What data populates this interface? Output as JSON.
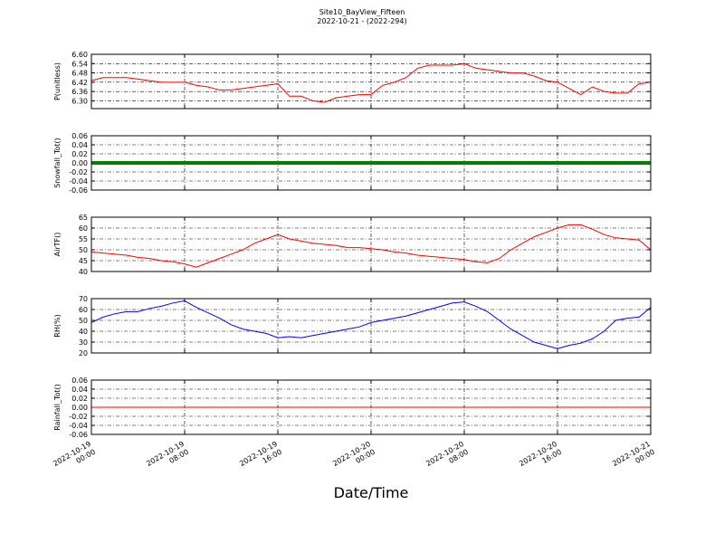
{
  "title": "Site10_BayView_Fifteen",
  "subtitle": "2022-10-21 - (2022-294)",
  "xlabel": "Date/Time",
  "x": [
    "2022-10-19 00:00",
    "2022-10-19 01:00",
    "2022-10-19 02:00",
    "2022-10-19 03:00",
    "2022-10-19 04:00",
    "2022-10-19 05:00",
    "2022-10-19 06:00",
    "2022-10-19 07:00",
    "2022-10-19 08:00",
    "2022-10-19 09:00",
    "2022-10-19 10:00",
    "2022-10-19 11:00",
    "2022-10-19 12:00",
    "2022-10-19 13:00",
    "2022-10-19 14:00",
    "2022-10-19 15:00",
    "2022-10-19 16:00",
    "2022-10-19 17:00",
    "2022-10-19 18:00",
    "2022-10-19 19:00",
    "2022-10-19 20:00",
    "2022-10-19 21:00",
    "2022-10-19 22:00",
    "2022-10-19 23:00",
    "2022-10-20 00:00",
    "2022-10-20 01:00",
    "2022-10-20 02:00",
    "2022-10-20 03:00",
    "2022-10-20 04:00",
    "2022-10-20 05:00",
    "2022-10-20 06:00",
    "2022-10-20 07:00",
    "2022-10-20 08:00",
    "2022-10-20 09:00",
    "2022-10-20 10:00",
    "2022-10-20 11:00",
    "2022-10-20 12:00",
    "2022-10-20 13:00",
    "2022-10-20 14:00",
    "2022-10-20 15:00",
    "2022-10-20 16:00",
    "2022-10-20 17:00",
    "2022-10-20 18:00",
    "2022-10-20 19:00",
    "2022-10-20 20:00",
    "2022-10-20 21:00",
    "2022-10-20 22:00",
    "2022-10-20 23:00",
    "2022-10-21 00:00"
  ],
  "xlim": [
    "2022-10-19 00:00",
    "2022-10-21 00:00"
  ],
  "xticks": [
    "2022-10-19 00:00",
    "2022-10-19 08:00",
    "2022-10-19 16:00",
    "2022-10-20 00:00",
    "2022-10-20 08:00",
    "2022-10-20 16:00",
    "2022-10-21 00:00"
  ],
  "chart_data": [
    {
      "type": "line",
      "ylabel": "P(unitless)",
      "color": "#ff0000",
      "grid": true,
      "ylim": [
        6.25,
        6.6
      ],
      "yticks": [
        {
          "value": 6.3,
          "label": "6.30"
        },
        6.36,
        6.42,
        6.48,
        6.54,
        {
          "value": 6.6,
          "label": "6.60"
        }
      ],
      "values": [
        6.43,
        6.45,
        6.45,
        6.45,
        6.44,
        6.43,
        6.42,
        6.42,
        6.42,
        6.4,
        6.39,
        6.37,
        6.37,
        6.38,
        6.39,
        6.4,
        6.41,
        6.33,
        6.33,
        6.3,
        6.29,
        6.32,
        6.33,
        6.34,
        6.34,
        6.4,
        6.42,
        6.45,
        6.51,
        6.53,
        6.53,
        6.53,
        6.54,
        6.51,
        6.5,
        6.49,
        6.48,
        6.48,
        6.46,
        6.43,
        6.42,
        6.38,
        6.34,
        6.39,
        6.36,
        6.35,
        6.35,
        6.41,
        6.42
      ]
    },
    {
      "type": "line",
      "ylabel": "Snowfall_Tot()",
      "color": "#008000",
      "grid": true,
      "ylim": [
        -0.06,
        0.06
      ],
      "yticks": [
        {
          "value": -0.06,
          "label": "-0.06"
        },
        {
          "value": -0.04,
          "label": "-0.04"
        },
        {
          "value": -0.02,
          "label": "-0.02"
        },
        {
          "value": 0,
          "label": "0.00"
        },
        0.02,
        0.04,
        0.06
      ],
      "values": [
        0,
        0,
        0,
        0,
        0,
        0,
        0,
        0,
        0,
        0,
        0,
        0,
        0,
        0,
        0,
        0,
        0,
        0,
        0,
        0,
        0,
        0,
        0,
        0,
        0,
        0,
        0,
        0,
        0,
        0,
        0,
        0,
        0,
        0,
        0,
        0,
        0,
        0,
        0,
        0,
        0,
        0,
        0,
        0,
        0,
        0,
        0,
        0,
        0
      ]
    },
    {
      "type": "line",
      "ylabel": "AirTF()",
      "color": "#ff0000",
      "grid": true,
      "ylim": [
        40,
        65
      ],
      "yticks": [
        40,
        45,
        50,
        55,
        60,
        65
      ],
      "values": [
        49,
        48.5,
        48,
        47.5,
        46.5,
        46,
        45,
        44.5,
        43.5,
        42,
        44,
        46,
        48,
        50,
        53,
        55,
        57,
        55,
        54,
        53,
        52.5,
        52,
        51,
        51,
        50.5,
        50,
        49,
        48.5,
        47.5,
        47,
        46.5,
        46,
        45.5,
        44.5,
        44,
        46,
        50,
        53,
        56,
        58,
        60,
        61.5,
        61.5,
        59.5,
        57,
        55.5,
        55,
        54.5,
        50
      ]
    },
    {
      "type": "line",
      "ylabel": "RH(%)",
      "color": "#0000ff",
      "grid": true,
      "ylim": [
        20,
        70
      ],
      "yticks": [
        20,
        30,
        40,
        50,
        60,
        70
      ],
      "values": [
        48,
        53,
        56,
        58,
        58,
        61,
        63,
        66,
        68,
        62,
        57,
        52,
        46,
        42,
        40,
        38,
        34,
        35,
        34,
        36,
        38,
        40,
        42,
        44,
        48,
        50,
        52,
        54,
        57,
        60,
        63,
        66,
        67,
        63,
        58,
        50,
        42,
        36,
        30,
        27,
        24,
        27,
        29,
        33,
        40,
        50,
        52,
        53,
        62
      ]
    },
    {
      "type": "line",
      "ylabel": "Rainfall_Tot()",
      "color": "#ff0000",
      "grid": true,
      "ylim": [
        -0.06,
        0.06
      ],
      "yticks": [
        {
          "value": -0.06,
          "label": "-0.06"
        },
        {
          "value": -0.04,
          "label": "-0.04"
        },
        {
          "value": -0.02,
          "label": "-0.02"
        },
        {
          "value": 0,
          "label": "0.00"
        },
        0.02,
        0.04,
        0.06
      ],
      "values": [
        0,
        0,
        0,
        0,
        0,
        0,
        0,
        0,
        0,
        0,
        0,
        0,
        0,
        0,
        0,
        0,
        0,
        0,
        0,
        0,
        0,
        0,
        0,
        0,
        0,
        0,
        0,
        0,
        0,
        0,
        0,
        0,
        0,
        0,
        0,
        0,
        0,
        0,
        0,
        0,
        0,
        0,
        0,
        0,
        0,
        0,
        0,
        0,
        0
      ]
    }
  ]
}
